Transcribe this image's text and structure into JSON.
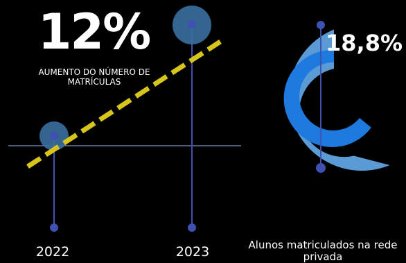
{
  "headline": {
    "value": "12%",
    "label": "AUMENTO DO NÚMERO DE MATRÍCULAS"
  },
  "years": [
    "2022",
    "2023"
  ],
  "private_share": {
    "value": "18,8%",
    "caption": "Alunos matriculados na rede privada"
  },
  "colors": {
    "background": "#000000",
    "stem": "#3f50b0",
    "marker": "#3a6fa0",
    "baseline": "#6b7ca8",
    "trend": "#d7c51c",
    "ring_outer": "#5a9bd6",
    "ring_inner": "#1f7ae0",
    "text": "#ffffff"
  },
  "chart_data": [
    {
      "type": "line",
      "x": [
        "2022",
        "2023"
      ],
      "xlabel": "",
      "ylabel": "",
      "annotations": [
        "12%",
        "AUMENTO DO NÚMERO DE MATRÍCULAS"
      ],
      "trend_line": true,
      "grid": false
    },
    {
      "type": "pie",
      "values": [
        18.8
      ],
      "labels": [
        "18,8%"
      ],
      "annotations": [
        "Alunos matriculados na rede privada"
      ]
    }
  ]
}
